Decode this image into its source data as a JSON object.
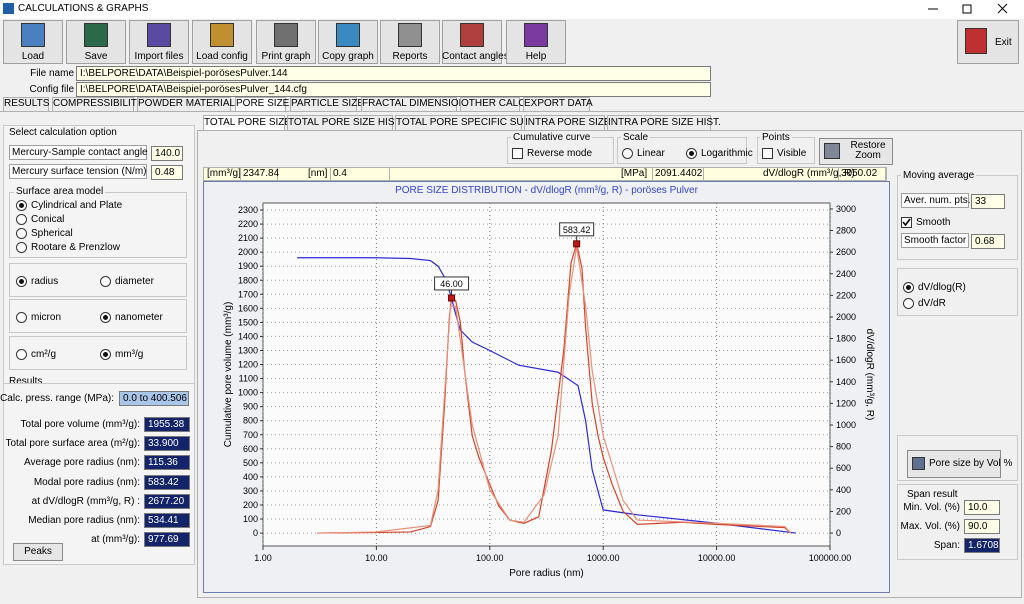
{
  "window": {
    "title": "CALCULATIONS & GRAPHS"
  },
  "toolbar": [
    "Load",
    "Save",
    "Import files",
    "Load config",
    "Print graph",
    "Copy graph",
    "Reports",
    "Contact angles",
    "Help"
  ],
  "exit": "Exit",
  "files": {
    "file_label": "File name",
    "file_value": "I:\\BELPORE\\DATA\\Beispiel-porösesPulver.144",
    "config_label": "Config file",
    "config_value": "I:\\BELPORE\\DATA\\Beispiel-porösesPulver_144.cfg"
  },
  "tabs": {
    "items": [
      "RESULTS",
      "COMPRESSIBILITY",
      "POWDER MATERIALS",
      "PORE SIZE",
      "PARTICLE SIZE",
      "FRACTAL DIMENSION",
      "OTHER CALC.",
      "EXPORT DATA"
    ],
    "active": 3
  },
  "subtabs": {
    "items": [
      "TOTAL PORE SIZE",
      "TOTAL PORE SIZE HIST.",
      "TOTAL PORE SPECIFIC SURF.",
      "INTRA PORE SIZE",
      "INTRA PORE SIZE HIST."
    ],
    "active": 0
  },
  "options": {
    "title": "Select calculation option",
    "contact_angle": {
      "label": "Mercury-Sample contact angle (deg)",
      "value": "140.0"
    },
    "surface_tension": {
      "label": "Mercury surface tension (N/m)",
      "value": "0.48"
    },
    "surface_model": {
      "title": "Surface area model",
      "items": [
        "Cylindrical and Plate",
        "Conical",
        "Spherical",
        "Rootare & Prenzlow"
      ],
      "selected": 0
    },
    "size_group": {
      "items": [
        "radius",
        "diameter"
      ],
      "selected": 0
    },
    "unit_group": {
      "items": [
        "micron",
        "nanometer"
      ],
      "selected": 1
    },
    "volume_group": {
      "items": [
        "cm²/g",
        "mm³/g"
      ],
      "selected": 1
    }
  },
  "results": {
    "title": "Results",
    "range_label": "Calc. press. range (MPa):",
    "range_value": "0.0 to 400.506",
    "rows": [
      [
        "Total pore volume (mm³/g):",
        "1955.38"
      ],
      [
        "Total pore surface area (m²/g):",
        "33.900"
      ],
      [
        "Average pore radius (nm):",
        "115.36"
      ],
      [
        "Modal pore radius (nm):",
        "583.42"
      ],
      [
        "at dV/dlogR (mm³/g, R) :",
        "2677.20"
      ],
      [
        "Median pore radius (nm):",
        "534.41"
      ],
      [
        "at (mm³/g):",
        "977.69"
      ]
    ],
    "peaks": "Peaks"
  },
  "controls": {
    "cumulative": {
      "title": "Cumulative curve",
      "label": "Reverse mode",
      "checked": false
    },
    "scale": {
      "title": "Scale",
      "items": [
        "Linear",
        "Logarithmic"
      ],
      "selected": 1
    },
    "points": {
      "title": "Points",
      "label": "Visible",
      "checked": false
    },
    "restore": [
      "Restore",
      "Zoom"
    ]
  },
  "readout": [
    [
      "[mm³/g]",
      "2347.84"
    ],
    [
      "[nm]",
      "0.4"
    ],
    [
      "[MPa]",
      "2091.4402"
    ],
    [
      "dV/dlogR (mm³/g, R)",
      "3050.02"
    ]
  ],
  "side": {
    "moving_title": "Moving average",
    "aver_label": "Aver. num. pts.",
    "aver_value": "33",
    "smooth_label": "Smooth",
    "smooth_checked": true,
    "factor_label": "Smooth factor",
    "factor_value": "0.68",
    "deriv": {
      "items": [
        "dV/dlog(R)",
        "dV/dR"
      ],
      "selected": 0
    },
    "pore_button": "Pore size by Vol %",
    "span": {
      "title": "Span result",
      "rows": [
        [
          "Min. Vol. (%)",
          "10.0"
        ],
        [
          "Max. Vol. (%)",
          "90.0"
        ],
        [
          "Span:",
          "1.6708"
        ]
      ]
    }
  },
  "chart_data": {
    "type": "line",
    "title": "PORE SIZE DISTRIBUTION  - dV/dlogR (mm³/g, R) - poröses Pulver",
    "x_label": "Pore radius (nm)",
    "y_label": "Cumulative pore volume (mm³/g)",
    "y2_label": "dV/dlogR (mm³/g, R)",
    "xscale": "log",
    "xlim": [
      1,
      100000
    ],
    "xticks": [
      {
        "value": 1,
        "label": "1.00"
      },
      {
        "value": 10,
        "label": "10.00"
      },
      {
        "value": 100,
        "label": "100.00"
      },
      {
        "value": 1000,
        "label": "1000.00"
      },
      {
        "value": 10000,
        "label": "10000.00"
      },
      {
        "value": 100000,
        "label": "100000.00"
      }
    ],
    "ylim": [
      -92,
      2350
    ],
    "yticks": [
      0,
      100,
      200,
      300,
      400,
      500,
      600,
      700,
      800,
      900,
      1000,
      1100,
      1200,
      1300,
      1400,
      1500,
      1600,
      1700,
      1800,
      1900,
      2000,
      2100,
      2200,
      2300
    ],
    "y2lim": [
      -120,
      3055
    ],
    "y2ticks": [
      0,
      200,
      400,
      600,
      800,
      1000,
      1200,
      1400,
      1600,
      1800,
      2000,
      2200,
      2400,
      2600,
      2800,
      3000
    ],
    "grid": true,
    "series": [
      {
        "color": "#2b2bd6",
        "x": [
          2,
          10,
          20,
          30,
          35,
          40,
          45,
          50,
          55,
          70,
          100,
          180,
          400,
          600,
          700,
          800,
          1000,
          2000,
          10000,
          50000
        ],
        "values": [
          1960,
          1960,
          1955,
          1940,
          1900,
          1820,
          1700,
          1560,
          1445,
          1360,
          1300,
          1195,
          1145,
          1050,
          800,
          450,
          165,
          130,
          70,
          0
        ]
      },
      {
        "color": "#d2452a",
        "axis": "y2",
        "x": [
          3,
          10,
          20,
          30,
          35,
          40,
          44,
          46,
          50,
          55,
          60,
          70,
          80,
          100,
          120,
          150,
          200,
          270,
          350,
          450,
          520,
          583.42,
          650,
          700,
          800,
          900,
          1000,
          1200,
          1500,
          2000,
          5000,
          10000,
          40000,
          45000
        ],
        "values": [
          0,
          5,
          10,
          60,
          300,
          1200,
          2000,
          2176,
          2150,
          1950,
          1500,
          900,
          700,
          450,
          250,
          120,
          90,
          150,
          770,
          1700,
          2500,
          2677,
          2450,
          1900,
          1200,
          900,
          700,
          450,
          200,
          80,
          100,
          80,
          50,
          0
        ]
      },
      {
        "color": "#e8907a",
        "axis": "y2",
        "x": [
          3,
          10,
          30,
          35,
          40,
          45,
          50,
          60,
          70,
          100,
          150,
          200,
          300,
          400,
          500,
          583.42,
          700,
          800,
          1000,
          1500,
          2000,
          10000,
          40000,
          45000
        ],
        "values": [
          0,
          10,
          70,
          400,
          1300,
          2100,
          2100,
          1500,
          1000,
          400,
          120,
          100,
          350,
          900,
          2200,
          2650,
          2100,
          1500,
          900,
          300,
          120,
          90,
          60,
          0
        ]
      }
    ],
    "annotations": [
      {
        "label": "46.00",
        "x": 46,
        "y": 2176,
        "axis": "y2"
      },
      {
        "label": "583.42",
        "x": 583.42,
        "y": 2677,
        "axis": "y2"
      }
    ]
  }
}
